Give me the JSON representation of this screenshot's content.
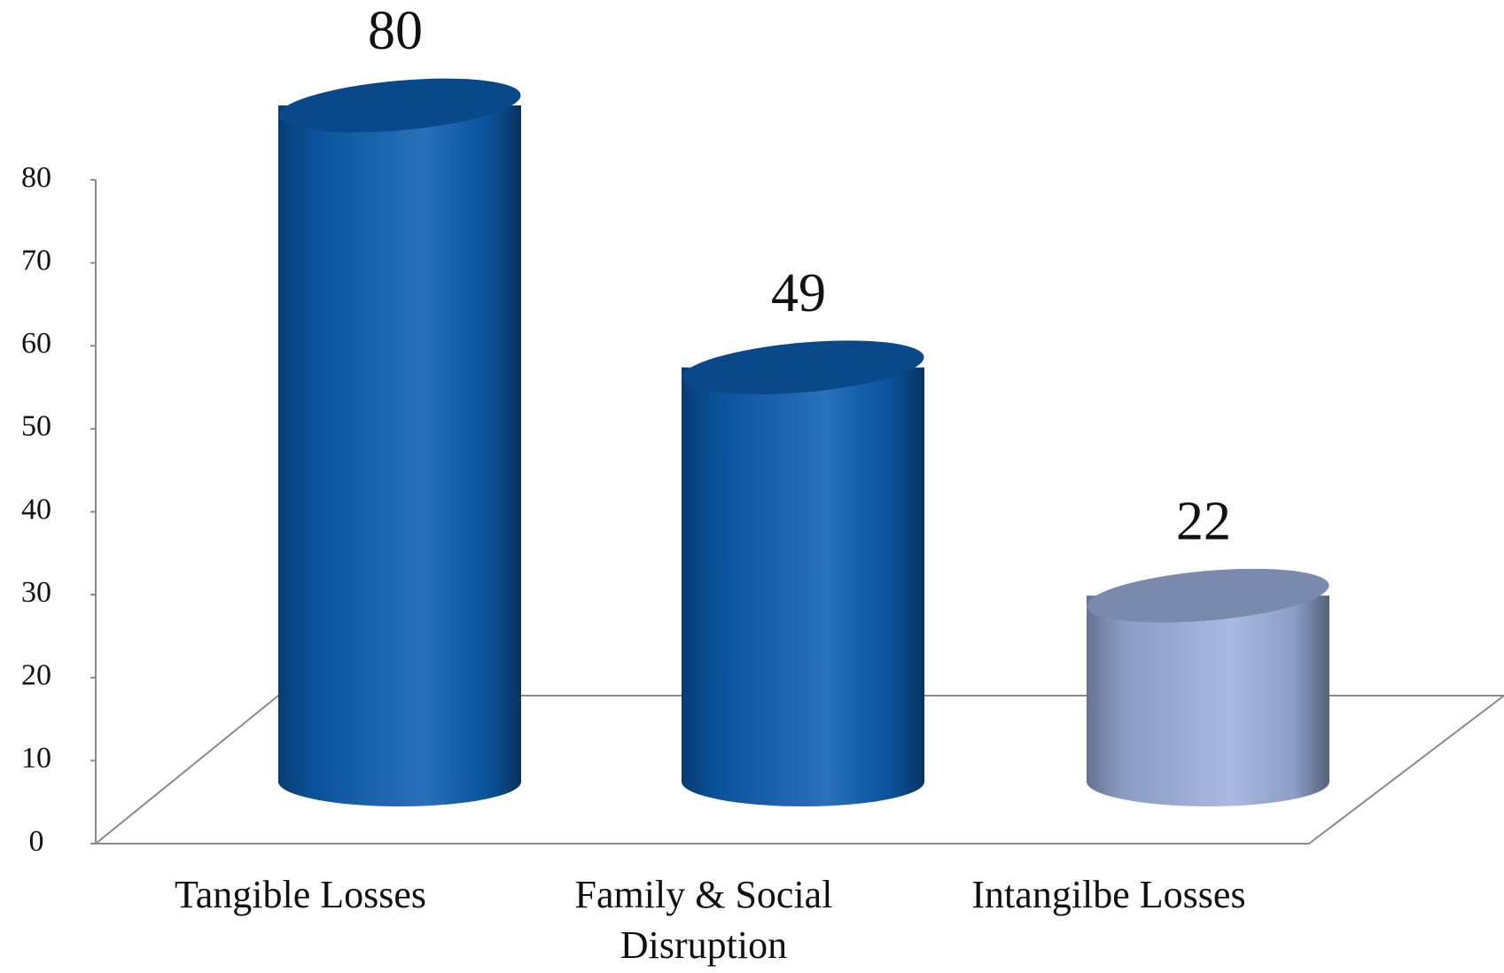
{
  "chart_data": {
    "type": "bar3d",
    "categories": [
      "Tangible Losses",
      "Family & Social Disruption",
      "Intangilbe Losses"
    ],
    "values": [
      80,
      49,
      22
    ],
    "colors": [
      "#0c5db0",
      "#0c5db0",
      "#9db1de"
    ],
    "ylim": [
      0,
      80
    ],
    "yticks": [
      0,
      10,
      20,
      30,
      40,
      50,
      60,
      70,
      80
    ]
  }
}
